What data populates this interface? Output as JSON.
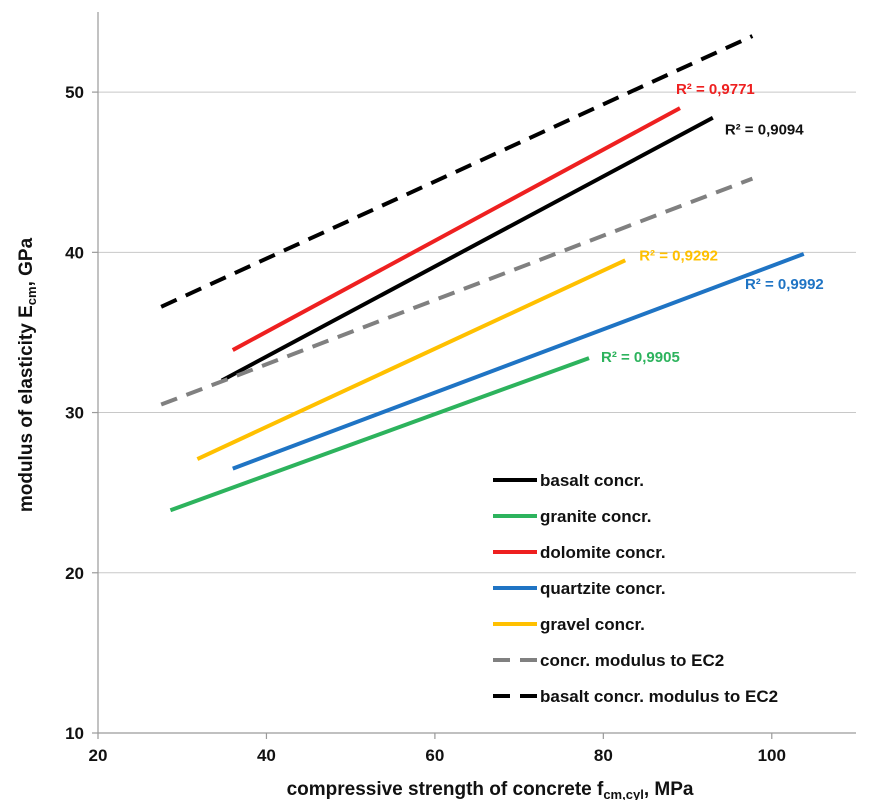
{
  "chart_data": {
    "type": "line",
    "xlabel": "compressive strength of concrete f",
    "xlabel_sub": "cm,cyl",
    "xlabel_suffix": ", MPa",
    "ylabel": "modulus of elasticity E",
    "ylabel_sub": "cm",
    "ylabel_suffix": ", GPa",
    "xlim": [
      20,
      110
    ],
    "ylim": [
      10,
      55
    ],
    "xticks": [
      20,
      40,
      60,
      80,
      100
    ],
    "yticks": [
      10,
      20,
      30,
      40,
      50
    ],
    "grid": "horizontal",
    "legend_position": "bottom-right",
    "series": [
      {
        "name": "basalt concr.",
        "color": "#000000",
        "dash": "solid",
        "points": [
          [
            34.7,
            32.0
          ],
          [
            93.0,
            48.4
          ]
        ],
        "r2": "R² = 0,9094",
        "r2_color": "#111111"
      },
      {
        "name": "granite concr.",
        "color": "#2db35d",
        "dash": "solid",
        "points": [
          [
            28.6,
            23.9
          ],
          [
            78.3,
            33.4
          ]
        ],
        "r2": "R² = 0,9905",
        "r2_color": "#2db35d"
      },
      {
        "name": "dolomite concr.",
        "color": "#ee2020",
        "dash": "solid",
        "points": [
          [
            36.0,
            33.9
          ],
          [
            89.1,
            49.0
          ]
        ],
        "r2": "R² = 0,9771",
        "r2_color": "#ee2020"
      },
      {
        "name": "quartzite concr.",
        "color": "#1f74c4",
        "dash": "solid",
        "points": [
          [
            36.0,
            26.5
          ],
          [
            103.8,
            39.9
          ]
        ],
        "r2": "R² = 0,9992",
        "r2_color": "#1f74c4"
      },
      {
        "name": "gravel concr.",
        "color": "#ffc000",
        "dash": "solid",
        "points": [
          [
            31.8,
            27.1
          ],
          [
            82.6,
            39.5
          ]
        ],
        "r2": "R² = 0,9292",
        "r2_color": "#ffc000"
      },
      {
        "name": "concr. modulus to EC2",
        "color": "#808080",
        "dash": "dashed",
        "points": [
          [
            27.5,
            30.5
          ],
          [
            97.7,
            44.6
          ]
        ]
      },
      {
        "name": "basalt concr. modulus to EC2",
        "color": "#000000",
        "dash": "dashed",
        "points": [
          [
            27.5,
            36.6
          ],
          [
            97.7,
            53.5
          ]
        ]
      }
    ]
  }
}
